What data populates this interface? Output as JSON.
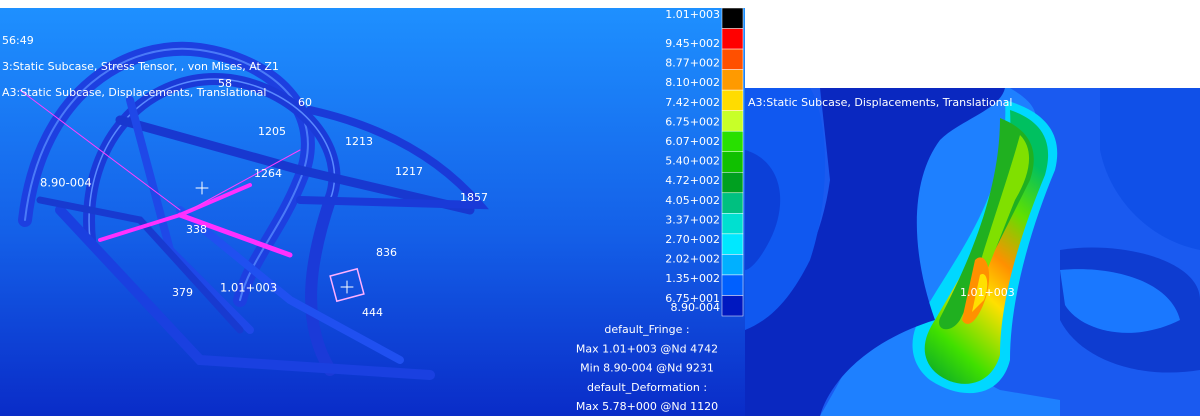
{
  "left_view": {
    "header_lines": [
      "56:49",
      "3:Static Subcase, Stress Tensor, , von Mises, At Z1",
      "A3:Static Subcase, Displacements, Translational"
    ],
    "annotations": [
      "8.90-004",
      "1.01+003"
    ],
    "node_labels": [
      "1205",
      "1213",
      "1217",
      "1857",
      "836",
      "379",
      "444",
      "338",
      "60",
      "58",
      "1264"
    ]
  },
  "legend": {
    "labels": [
      "1.01+003",
      "9.45+002",
      "8.77+002",
      "8.10+002",
      "7.42+002",
      "6.75+002",
      "6.07+002",
      "5.40+002",
      "4.72+002",
      "4.05+002",
      "3.37+002",
      "2.70+002",
      "2.02+002",
      "1.35+002",
      "6.75+001",
      "8.90-004"
    ],
    "summary": [
      "default_Fringe :",
      "Max 1.01+003 @Nd 4742",
      "Min 8.90-004 @Nd 9231",
      "default_Deformation :",
      "Max 5.78+000 @Nd 1120"
    ]
  },
  "right_view": {
    "header": "A3:Static Subcase, Displacements, Translational",
    "annotation": "1.01+003"
  }
}
